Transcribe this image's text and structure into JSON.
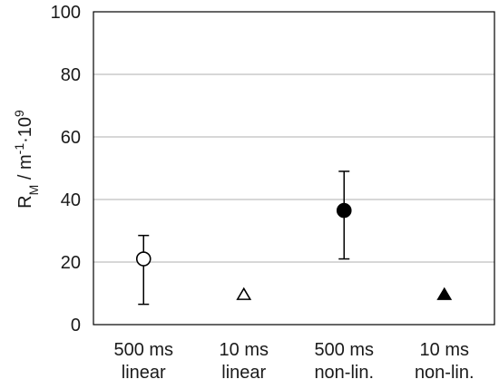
{
  "chart_data": {
    "type": "scatter",
    "title": "",
    "xlabel": "",
    "ylabel": {
      "base": "R",
      "base_sub": "M",
      "mid": " / m",
      "mid_sup": "-1",
      "dot": "·10",
      "end_sup": "9"
    },
    "ylim": [
      0,
      100
    ],
    "yticks": [
      "0",
      "20",
      "40",
      "60",
      "80",
      "100"
    ],
    "grid": true,
    "categories": [
      [
        "500 ms",
        "linear"
      ],
      [
        "10 ms",
        "linear"
      ],
      [
        "500 ms",
        "non-lin."
      ],
      [
        "10 ms",
        "non-lin."
      ]
    ],
    "points": [
      {
        "y": 21,
        "err_low": 6.5,
        "err_high": 28.5,
        "marker": "circle",
        "filled": false
      },
      {
        "y": 9.5,
        "err_low": 9.5,
        "err_high": 9.5,
        "marker": "triangle",
        "filled": false
      },
      {
        "y": 36.5,
        "err_low": 21,
        "err_high": 49,
        "marker": "circle",
        "filled": true
      },
      {
        "y": 9.5,
        "err_low": 9.5,
        "err_high": 9.5,
        "marker": "triangle",
        "filled": true
      }
    ],
    "colors": {
      "mark": "#000000",
      "grid": "#bfbfbf",
      "axis": "#000000"
    }
  }
}
